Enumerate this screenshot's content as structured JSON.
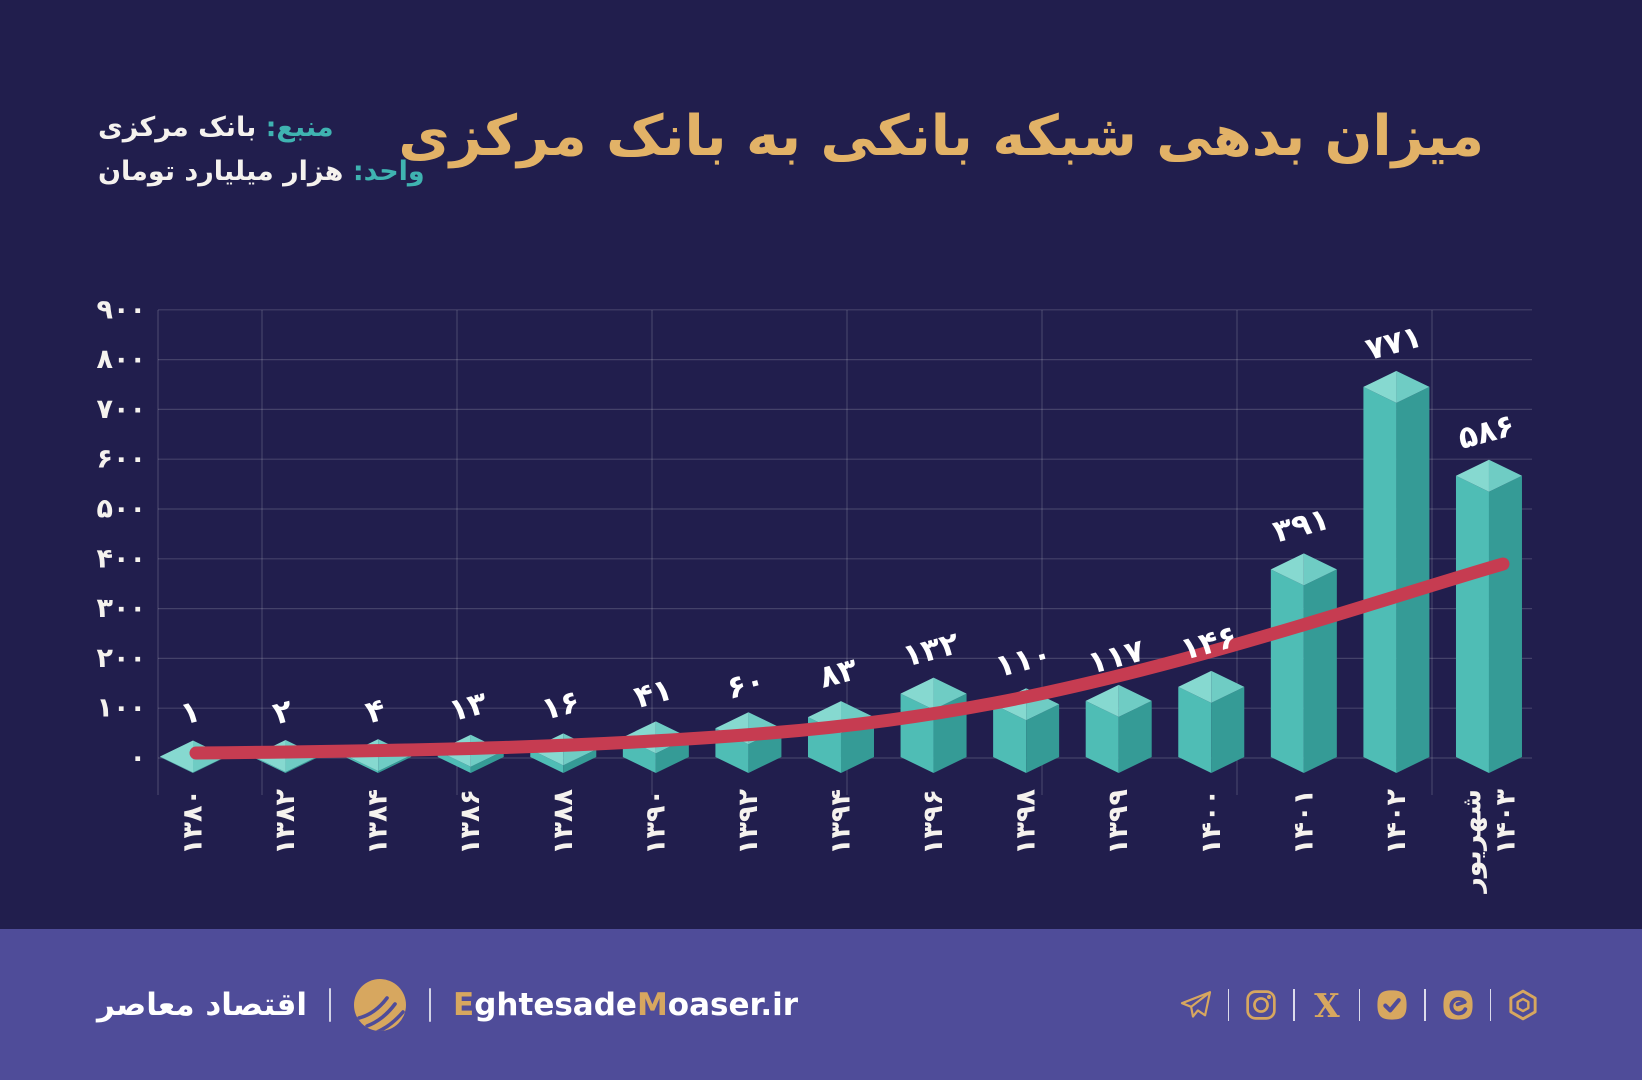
{
  "header": {
    "title": "میزان بدهی شبکه بانکی به بانک مرکزی",
    "source_label": "منبع:",
    "source_value": "بانک مرکزی",
    "unit_label": "واحد:",
    "unit_value": "هزار میلیارد تومان"
  },
  "chart_data": {
    "type": "bar",
    "title": "میزان بدهی شبکه بانکی به بانک مرکزی",
    "unit": "هزار میلیارد تومان",
    "categories": [
      "1380",
      "1382",
      "1384",
      "1386",
      "1388",
      "1390",
      "1392",
      "1394",
      "1396",
      "1398",
      "1399",
      "1400",
      "1401",
      "1402",
      "Shahrivar 1403"
    ],
    "categories_fa": [
      "۱۳۸۰",
      "۱۳۸۲",
      "۱۳۸۴",
      "۱۳۸۶",
      "۱۳۸۸",
      "۱۳۹۰",
      "۱۳۹۲",
      "۱۳۹۴",
      "۱۳۹۶",
      "۱۳۹۸",
      "۱۳۹۹",
      "۱۴۰۰",
      "۱۴۰۱",
      "۱۴۰۲",
      "شهریور ۱۴۰۳"
    ],
    "values": [
      1,
      2,
      4,
      13,
      16,
      41,
      60,
      83,
      132,
      110,
      117,
      146,
      391,
      771,
      586
    ],
    "value_labels_fa": [
      "۱",
      "۲",
      "۴",
      "۱۳",
      "۱۶",
      "۴۱",
      "۶۰",
      "۸۳",
      "۱۳۲",
      "۱۱۰",
      "۱۱۷",
      "۱۴۶",
      "۳۹۱",
      "۷۷۱",
      "۵۸۶"
    ],
    "y_ticks": [
      0,
      100,
      200,
      300,
      400,
      500,
      600,
      700,
      800,
      900
    ],
    "y_ticks_fa": [
      "۰",
      "۱۰۰",
      "۲۰۰",
      "۳۰۰",
      "۴۰۰",
      "۵۰۰",
      "۶۰۰",
      "۷۰۰",
      "۸۰۰",
      "۹۰۰"
    ],
    "ylim": [
      0,
      900
    ],
    "grid": true,
    "legend": "none",
    "trend_line": {
      "type": "smooth",
      "approx_values_at_bars": [
        2,
        4,
        7,
        12,
        20,
        32,
        48,
        65,
        90,
        115,
        140,
        172,
        235,
        305,
        388
      ]
    },
    "xlabel": "",
    "ylabel": ""
  },
  "footer": {
    "brand_fa": "اقتصاد معاصر",
    "site": {
      "p1": "E",
      "p2": "ghtesade",
      "p3": "M",
      "p4": "oaser.ir"
    },
    "icons": [
      "telegram",
      "instagram",
      "x",
      "bale",
      "eitaa",
      "rubika"
    ]
  },
  "colors": {
    "background": "#211e4d",
    "footer_bg": "#4f4c99",
    "grid": "rgba(255,255,255,0.16)",
    "bar_face_left": "#4fbdb5",
    "bar_face_right": "#359b96",
    "bar_top_left": "#86d9d0",
    "bar_top_right": "#6fccc4",
    "trend_red": "#c63c51",
    "gold": "#d7a75f",
    "title_gold": "#e2b267",
    "teal_label": "#3fb3b1",
    "text_white": "#f5f2ee"
  }
}
